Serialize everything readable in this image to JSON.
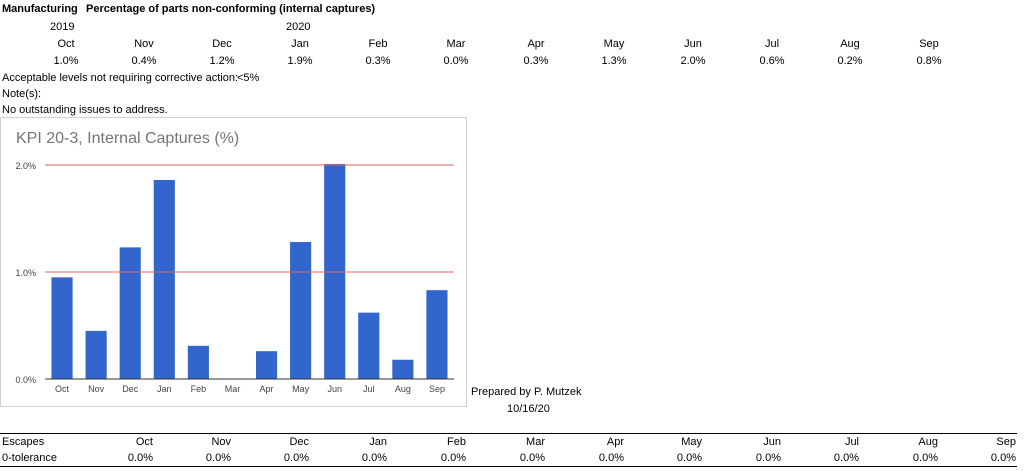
{
  "header": {
    "dept": "Manufacturing",
    "title": "Percentage of parts non-conforming (internal captures)",
    "year1": "2019",
    "year2": "2020"
  },
  "months": [
    "Oct",
    "Nov",
    "Dec",
    "Jan",
    "Feb",
    "Mar",
    "Apr",
    "May",
    "Jun",
    "Jul",
    "Aug",
    "Sep"
  ],
  "percents": [
    "1.0%",
    "0.4%",
    "1.2%",
    "1.9%",
    "0.3%",
    "0.0%",
    "0.3%",
    "1.3%",
    "2.0%",
    "0.6%",
    "0.2%",
    "0.8%"
  ],
  "acceptable_label": "Acceptable levels not requiring corrective action:",
  "acceptable_value": "<5%",
  "notes_label": "Note(s):",
  "notes_text": "No outstanding issues to address.",
  "prepared_by": "Prepared by P. Mutzek",
  "prepared_date": "10/16/20",
  "escapes": {
    "label": "Escapes",
    "tolerance_label": "0-tolerance",
    "months": [
      "Oct",
      "Nov",
      "Dec",
      "Jan",
      "Feb",
      "Mar",
      "Apr",
      "May",
      "Jun",
      "Jul",
      "Aug",
      "Sep"
    ],
    "values": [
      "0.0%",
      "0.0%",
      "0.0%",
      "0.0%",
      "0.0%",
      "0.0%",
      "0.0%",
      "0.0%",
      "0.0%",
      "0.0%",
      "0.0%",
      "0.0%"
    ]
  },
  "chart_data": {
    "type": "bar",
    "title": "KPI 20-3, Internal Captures (%)",
    "categories": [
      "Oct",
      "Nov",
      "Dec",
      "Jan",
      "Feb",
      "Mar",
      "Apr",
      "May",
      "Jun",
      "Jul",
      "Aug",
      "Sep"
    ],
    "values": [
      0.95,
      0.45,
      1.23,
      1.86,
      0.31,
      0.0,
      0.26,
      1.28,
      2.01,
      0.62,
      0.18,
      0.83
    ],
    "ylim": [
      0,
      2.0
    ],
    "yticks": [
      "0.0%",
      "1.0%",
      "2.0%"
    ],
    "ytick_values": [
      0,
      1.0,
      2.0
    ],
    "reference_lines": [
      1.0,
      2.0
    ],
    "bar_color": "#3366cc",
    "reference_color": "#e06666",
    "grid": false,
    "legend": "none"
  }
}
